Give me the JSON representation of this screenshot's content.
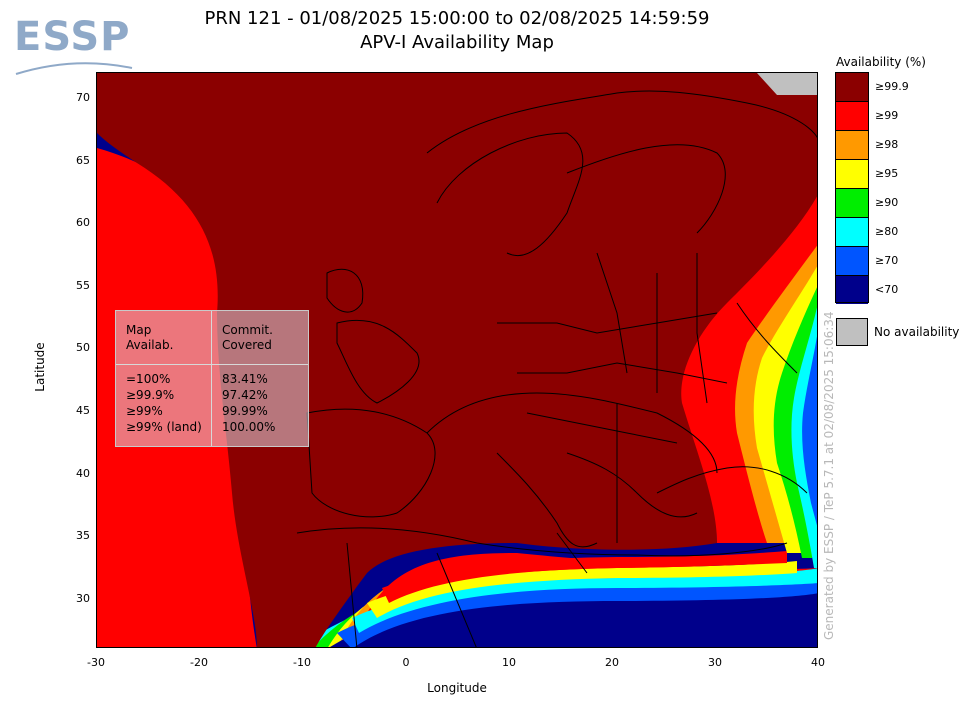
{
  "title": "PRN 121 - 01/08/2025 15:00:00 to 02/08/2025 14:59:59",
  "subtitle": "APV-I Availability Map",
  "logo_text": "ESSP",
  "axes": {
    "xlabel": "Longitude",
    "ylabel": "Latitude",
    "xticks": [
      "-30",
      "-20",
      "-10",
      "0",
      "10",
      "20",
      "30",
      "40"
    ],
    "yticks": [
      "70",
      "65",
      "60",
      "55",
      "50",
      "45",
      "40",
      "35",
      "30"
    ],
    "xlim": [
      -30,
      40
    ],
    "ylim": [
      26,
      72
    ]
  },
  "legend": {
    "title": "Availability (%)",
    "items": [
      {
        "label": "≥99.9",
        "color": "#8b0000"
      },
      {
        "label": "≥99",
        "color": "#ff0000"
      },
      {
        "label": "≥98",
        "color": "#ff9900"
      },
      {
        "label": "≥95",
        "color": "#ffff00"
      },
      {
        "label": "≥90",
        "color": "#00ee00"
      },
      {
        "label": "≥80",
        "color": "#00ffff"
      },
      {
        "label": "≥70",
        "color": "#0055ff"
      },
      {
        "label": "<70",
        "color": "#00008b"
      }
    ],
    "no_availability": {
      "label": "No availability",
      "color": "#c0c0c0"
    }
  },
  "stats_table": {
    "headers": [
      "Map\nAvailab.",
      "Commit.\nCovered"
    ],
    "rows": [
      [
        "=100%",
        "83.41%"
      ],
      [
        "≥99.9%",
        "97.42%"
      ],
      [
        "≥99%",
        "99.99%"
      ],
      [
        "≥99% (land)",
        "100.00%"
      ]
    ]
  },
  "generator_note": "Generated by ESSP / TeP 5.7.1 at 02/08/2025 15:06:34"
}
